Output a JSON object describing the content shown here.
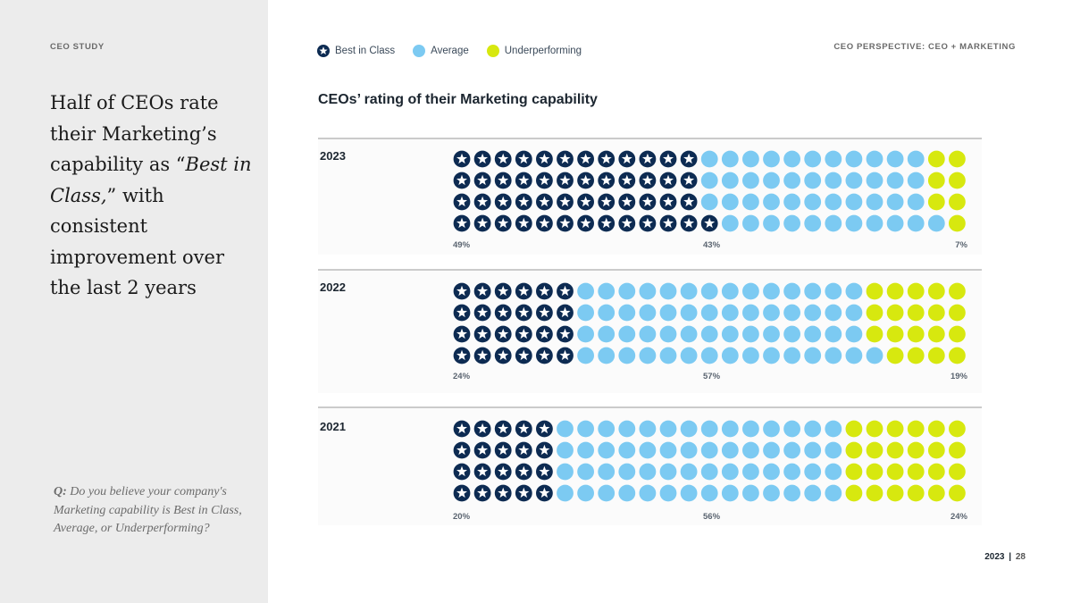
{
  "sidebar": {
    "study_label": "CEO STUDY",
    "headline_part1": "Half of CEOs rate their Marketing’s capability as “",
    "headline_em": "Best in Class,",
    "headline_part2": "” with consistent improvement over the last 2 years",
    "question_prefix": "Q:",
    "question_text": " Do you believe your company's Marketing capability is Best in Class, Average, or Underperforming?"
  },
  "header": {
    "perspective": "CEO PERSPECTIVE: CEO + MARKETING"
  },
  "legend": [
    {
      "label": "Best in Class",
      "color": "#0d2b52",
      "icon": "star-icon"
    },
    {
      "label": "Average",
      "color": "#7ccaf2",
      "icon": "dot-icon"
    },
    {
      "label": "Underperforming",
      "color": "#d7e80f",
      "icon": "dot-icon"
    }
  ],
  "footer": {
    "year": "2023",
    "separator": "|",
    "page": "28"
  },
  "chart_data": {
    "type": "waffle",
    "title": "CEOs’ rating of their Marketing capability",
    "categories": [
      "Best in Class",
      "Average",
      "Underperforming"
    ],
    "colors": [
      "#0d2b52",
      "#7ccaf2",
      "#d7e80f"
    ],
    "rows_per_year": 4,
    "cols_per_row": 25,
    "years": [
      {
        "year": "2023",
        "values": [
          49,
          43,
          7
        ],
        "labels": [
          "49%",
          "43%",
          "7%"
        ]
      },
      {
        "year": "2022",
        "values": [
          24,
          57,
          19
        ],
        "labels": [
          "24%",
          "57%",
          "19%"
        ]
      },
      {
        "year": "2021",
        "values": [
          20,
          56,
          24
        ],
        "labels": [
          "20%",
          "56%",
          "24%"
        ]
      }
    ]
  }
}
